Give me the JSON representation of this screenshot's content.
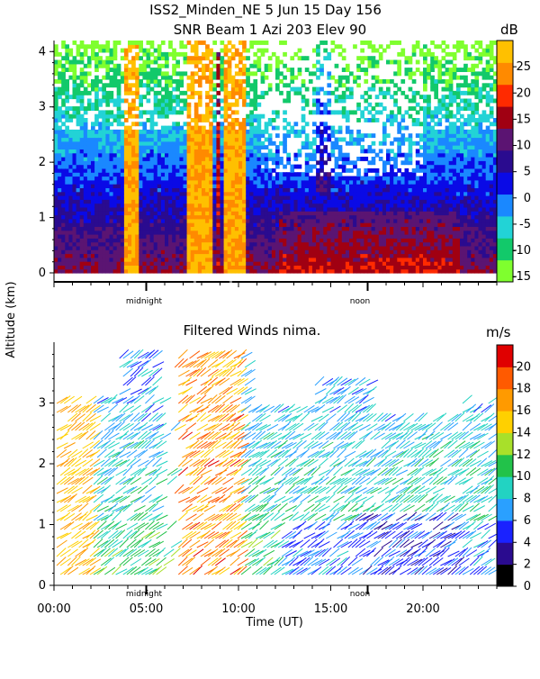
{
  "header": {
    "line1": "ISS2_Minden_NE    5 Jun 15 Day 156",
    "line2": "SNR Beam 1 Azi 203 Elev 90"
  },
  "shared": {
    "ylabel": "Altitude (km)",
    "xlabel": "Time (UT)",
    "midnight_label": "midnight",
    "noon_label": "noon"
  },
  "chart_data": [
    {
      "type": "heatmap",
      "subtitle": "SNR Beam 1 Azi 203 Elev 90",
      "x_range_hours": [
        0,
        24
      ],
      "ylim": [
        0,
        4.2
      ],
      "y_ticks": [
        0,
        1,
        2,
        3,
        4
      ],
      "colorbar": {
        "unit": "dB",
        "ticks": [
          25,
          20,
          15,
          10,
          5,
          0,
          -5,
          -10,
          -15
        ],
        "range": [
          -16,
          30
        ],
        "colors": [
          "#7fff2e",
          "#12c96a",
          "#22d3d6",
          "#1a88ff",
          "#0a0ae6",
          "#2a0b8f",
          "#5b1472",
          "#a00012",
          "#ff2a00",
          "#ff8a00",
          "#ffc000"
        ]
      },
      "features": [
        {
          "label": "strong echo column",
          "t_start": 7.2,
          "t_end": 8.6,
          "value_db": 28
        },
        {
          "label": "strong echo column",
          "t_start": 9.0,
          "t_end": 10.2,
          "value_db": 25
        },
        {
          "label": "boundary layer band",
          "t_start": 0,
          "t_end": 24,
          "alt_top_km": 0.6,
          "value_db": 8
        }
      ]
    },
    {
      "type": "scatter",
      "title": "Filtered Winds nima.",
      "x_range_hours": [
        0,
        24
      ],
      "x_ticks_labels": [
        "00:00",
        "05:00",
        "10:00",
        "15:00",
        "20:00"
      ],
      "x_ticks_hours": [
        0,
        5,
        10,
        15,
        20
      ],
      "ylim": [
        0,
        4
      ],
      "y_ticks": [
        0,
        1,
        2,
        3
      ],
      "colorbar": {
        "unit": "m/s",
        "ticks": [
          20,
          18,
          16,
          14,
          12,
          10,
          8,
          6,
          4,
          2,
          0
        ],
        "range": [
          0,
          22
        ],
        "colors": [
          "#000000",
          "#2a0b8f",
          "#1a22ff",
          "#2aa0ff",
          "#22d3c2",
          "#22c24a",
          "#a8e02a",
          "#ffd000",
          "#ff9a00",
          "#ff5a00",
          "#e00000"
        ]
      }
    }
  ]
}
